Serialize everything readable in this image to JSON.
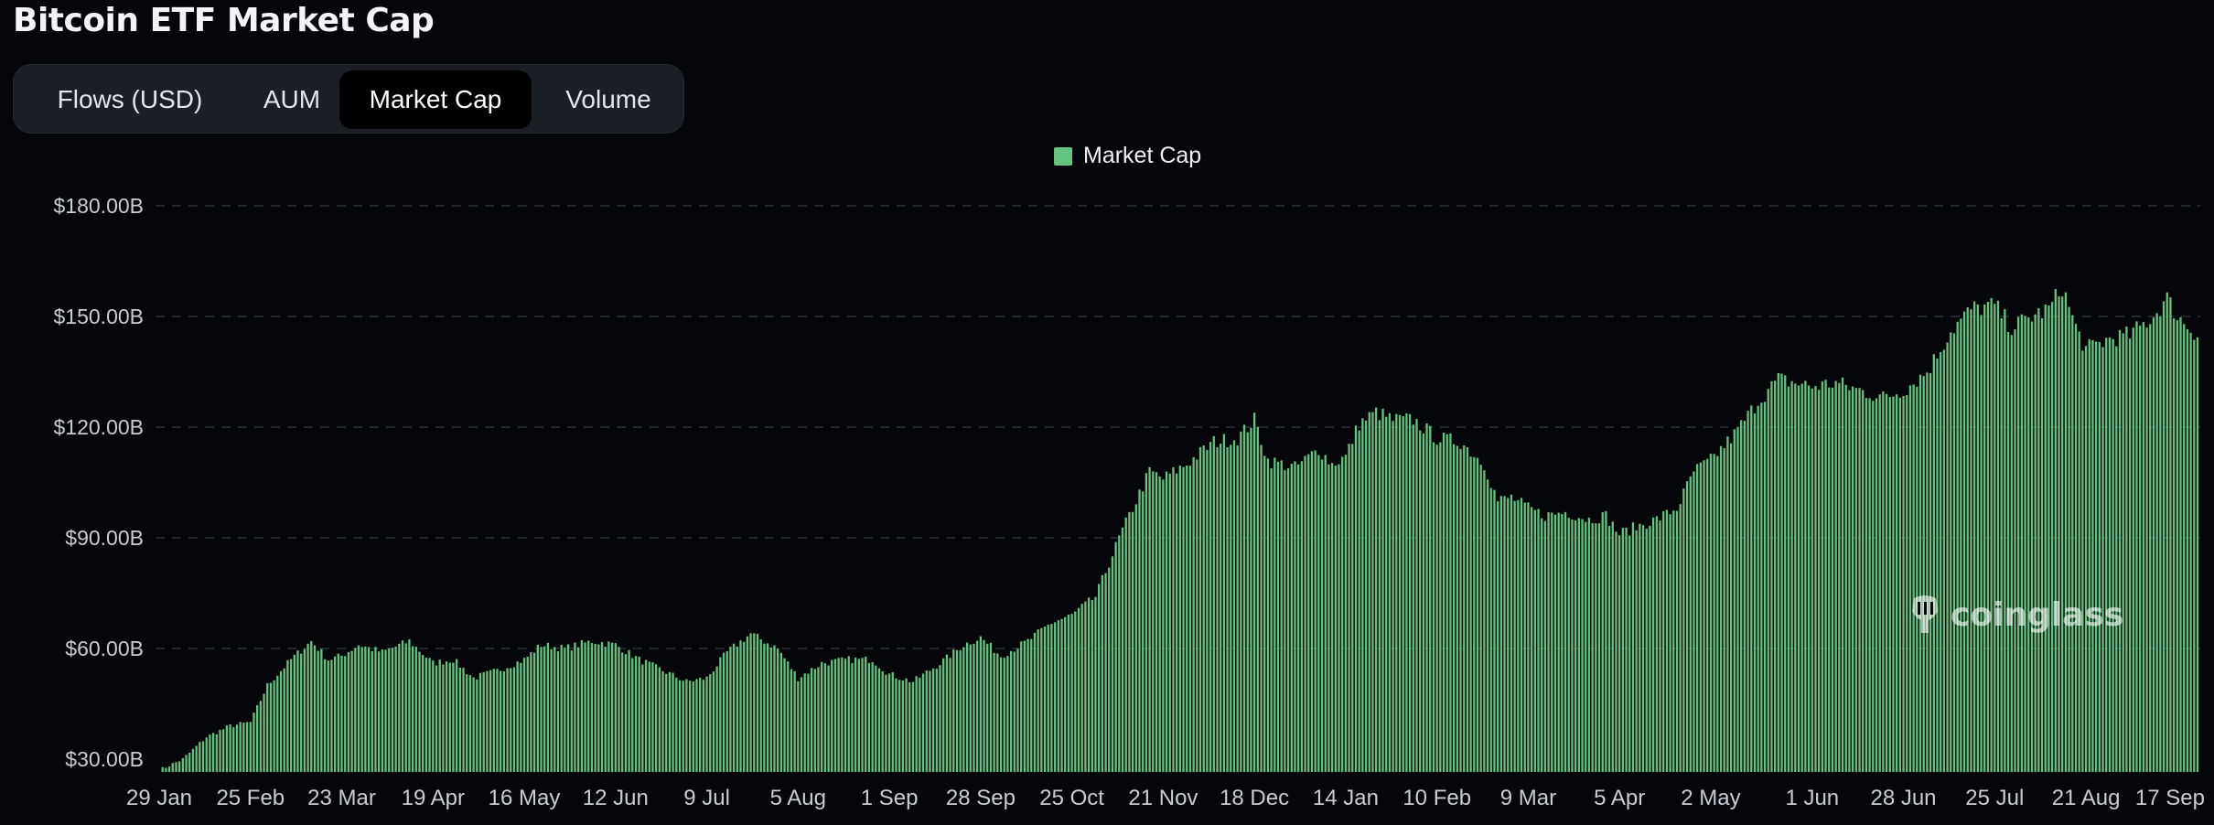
{
  "page_title": "Bitcoin ETF Market Cap",
  "tabs": [
    {
      "label": "Flows (USD)",
      "active": false
    },
    {
      "label": "AUM",
      "active": false
    },
    {
      "label": "Market Cap",
      "active": true
    },
    {
      "label": "Volume",
      "active": false
    }
  ],
  "watermark": "coinglass",
  "chart_data": {
    "type": "bar",
    "title": "",
    "xlabel": "",
    "ylabel": "",
    "ylim": [
      25,
      190
    ],
    "yticks": [
      30,
      60,
      90,
      120,
      150,
      180
    ],
    "ytick_labels": [
      "$30.00B",
      "$60.00B",
      "$90.00B",
      "$120.00B",
      "$150.00B",
      "$180.00B"
    ],
    "xtick_labels": [
      "29 Jan",
      "25 Feb",
      "23 Mar",
      "19 Apr",
      "16 May",
      "12 Jun",
      "9 Jul",
      "5 Aug",
      "1 Sep",
      "28 Sep",
      "25 Oct",
      "21 Nov",
      "18 Dec",
      "14 Jan",
      "10 Feb",
      "9 Mar",
      "5 Apr",
      "2 May",
      "1 Jun",
      "28 Jun",
      "25 Jul",
      "21 Aug",
      "17 Sep"
    ],
    "grid": true,
    "legend_position": "top-center",
    "bar_color": "#62c47e",
    "series": [
      {
        "name": "Market Cap",
        "anchors": [
          [
            "29 Jan",
            27
          ],
          [
            "5 Feb",
            30
          ],
          [
            "12 Feb",
            36
          ],
          [
            "19 Feb",
            39
          ],
          [
            "25 Feb",
            40
          ],
          [
            "1 Mar",
            50
          ],
          [
            "8 Mar",
            57
          ],
          [
            "14 Mar",
            62
          ],
          [
            "19 Mar",
            57
          ],
          [
            "23 Mar",
            58
          ],
          [
            "28 Mar",
            61
          ],
          [
            "4 Apr",
            59
          ],
          [
            "12 Apr",
            62
          ],
          [
            "19 Apr",
            56
          ],
          [
            "25 Apr",
            57
          ],
          [
            "1 May",
            52
          ],
          [
            "8 May",
            54
          ],
          [
            "16 May",
            57
          ],
          [
            "21 May",
            61
          ],
          [
            "28 May",
            60
          ],
          [
            "5 Jun",
            62
          ],
          [
            "12 Jun",
            61
          ],
          [
            "19 Jun",
            57
          ],
          [
            "26 Jun",
            54
          ],
          [
            "3 Jul",
            51
          ],
          [
            "9 Jul",
            52
          ],
          [
            "15 Jul",
            59
          ],
          [
            "22 Jul",
            64
          ],
          [
            "30 Jul",
            60
          ],
          [
            "5 Aug",
            52
          ],
          [
            "12 Aug",
            56
          ],
          [
            "20 Aug",
            57
          ],
          [
            "27 Aug",
            57
          ],
          [
            "1 Sep",
            53
          ],
          [
            "8 Sep",
            51
          ],
          [
            "16 Sep",
            56
          ],
          [
            "23 Sep",
            61
          ],
          [
            "28 Sep",
            63
          ],
          [
            "4 Oct",
            58
          ],
          [
            "12 Oct",
            62
          ],
          [
            "19 Oct",
            67
          ],
          [
            "25 Oct",
            69
          ],
          [
            "1 Nov",
            74
          ],
          [
            "8 Nov",
            90
          ],
          [
            "13 Nov",
            100
          ],
          [
            "17 Nov",
            108
          ],
          [
            "21 Nov",
            106
          ],
          [
            "28 Nov",
            110
          ],
          [
            "6 Dec",
            116
          ],
          [
            "13 Dec",
            117
          ],
          [
            "18 Dec",
            122
          ],
          [
            "22 Dec",
            111
          ],
          [
            "30 Dec",
            109
          ],
          [
            "6 Jan",
            114
          ],
          [
            "10 Jan",
            110
          ],
          [
            "14 Jan",
            112
          ],
          [
            "18 Jan",
            121
          ],
          [
            "23 Jan",
            124
          ],
          [
            "28 Jan",
            122
          ],
          [
            "3 Feb",
            122
          ],
          [
            "10 Feb",
            117
          ],
          [
            "17 Feb",
            116
          ],
          [
            "24 Feb",
            110
          ],
          [
            "28 Feb",
            100
          ],
          [
            "4 Mar",
            101
          ],
          [
            "9 Mar",
            98
          ],
          [
            "14 Mar",
            96
          ],
          [
            "20 Mar",
            97
          ],
          [
            "27 Mar",
            95
          ],
          [
            "1 Apr",
            96
          ],
          [
            "5 Apr",
            91
          ],
          [
            "10 Apr",
            93
          ],
          [
            "16 Apr",
            95
          ],
          [
            "22 Apr",
            98
          ],
          [
            "27 Apr",
            108
          ],
          [
            "2 May",
            111
          ],
          [
            "9 May",
            118
          ],
          [
            "16 May",
            127
          ],
          [
            "22 May",
            133
          ],
          [
            "1 Jun",
            131
          ],
          [
            "8 Jun",
            132
          ],
          [
            "15 Jun",
            130
          ],
          [
            "22 Jun",
            128
          ],
          [
            "28 Jun",
            130
          ],
          [
            "5 Jul",
            135
          ],
          [
            "12 Jul",
            146
          ],
          [
            "18 Jul",
            152
          ],
          [
            "25 Jul",
            153
          ],
          [
            "30 Jul",
            147
          ],
          [
            "5 Aug",
            150
          ],
          [
            "10 Aug",
            152
          ],
          [
            "14 Aug",
            158
          ],
          [
            "18 Aug",
            147
          ],
          [
            "21 Aug",
            141
          ],
          [
            "28 Aug",
            144
          ],
          [
            "3 Sep",
            145
          ],
          [
            "10 Sep",
            150
          ],
          [
            "14 Sep",
            155
          ],
          [
            "17 Sep",
            150
          ],
          [
            "23 Sep",
            145
          ]
        ]
      }
    ]
  }
}
